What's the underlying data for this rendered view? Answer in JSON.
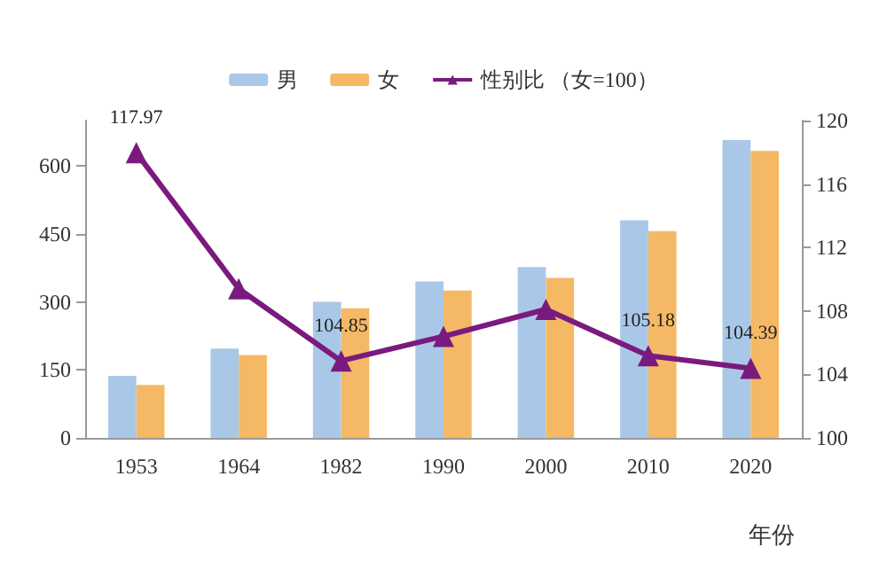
{
  "chart_data": {
    "type": "bar",
    "xlabel": "年份",
    "categories": [
      "1953",
      "1964",
      "1982",
      "1990",
      "2000",
      "2010",
      "2020"
    ],
    "series": [
      {
        "name": "男",
        "color": "#a9c8e8",
        "values": [
          137,
          197,
          300,
          345,
          377,
          480,
          657
        ]
      },
      {
        "name": "女",
        "color": "#f5b865",
        "values": [
          117,
          183,
          286,
          325,
          353,
          456,
          633
        ]
      },
      {
        "name": "性别比 （女=100）",
        "type": "line",
        "axis": "y2",
        "color": "#7a1a7e",
        "marker": "triangle",
        "values": [
          117.97,
          109.4,
          104.85,
          106.4,
          108.1,
          105.18,
          104.39
        ],
        "value_labels": [
          "117.97",
          null,
          "104.85",
          null,
          null,
          "105.18",
          "104.39"
        ]
      }
    ],
    "ylim": [
      0,
      700
    ],
    "yticks": [
      0,
      150,
      300,
      450,
      600
    ],
    "y2lim": [
      100,
      120
    ],
    "y2ticks": [
      100,
      104,
      108,
      112,
      116,
      120
    ],
    "legend": "top",
    "grid": false
  }
}
